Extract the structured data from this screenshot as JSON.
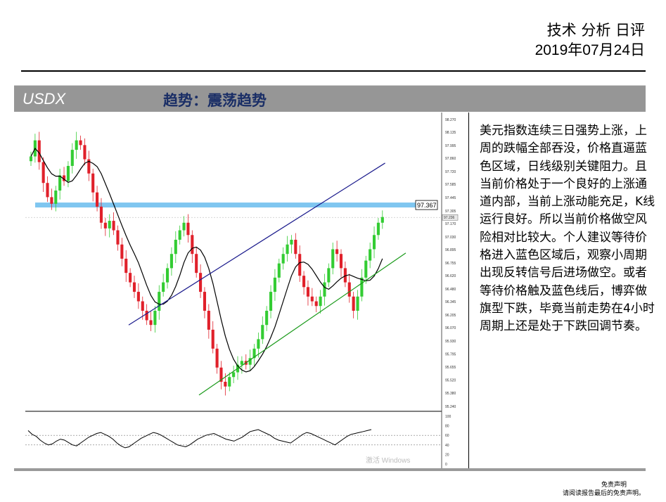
{
  "header": {
    "title": "技术 分析 日评",
    "date": "2019年07月24日"
  },
  "band": {
    "symbol": "USDX",
    "trend": "趋势：震荡趋势"
  },
  "commentary": "美元指数连续三日强势上涨，上周的跌幅全部吞没，价格直逼蓝色区域，日线级别关键阻力。且当前价格处于一个良好的上涨通道内部，当前上涨动能充足，K线运行良好。所以当前价格做空风险相对比较大。个人建议等待价格进入蓝色区域后，观察小周期出现反转信号后进场做空。或者等待价格触及蓝色线后，博弈做旗型下跌，毕竟当前走势在4小时周期上还是处于下跌回调节奏。",
  "watermark": "激活 Windows",
  "disclaimer": {
    "line1": "免责声明",
    "line2": "请阅读报告最后的免责声明。"
  },
  "colors": {
    "band_bg": "#969696",
    "trend_text": "#1a2e66",
    "up_candle": "#33cc33",
    "down_candle": "#e0202a",
    "resistance_zone": "#7fc6f0",
    "upper_channel": "#1a1a8c",
    "lower_channel": "#1a9a1a"
  },
  "chart_data": {
    "type": "candlestick",
    "instrument": "USDX",
    "y_ticks": [
      "98.270",
      "98.135",
      "97.995",
      "97.860",
      "97.720",
      "97.585",
      "97.445",
      "97.305",
      "97.170",
      "97.030",
      "96.895",
      "96.755",
      "96.620",
      "96.480",
      "96.345",
      "96.205",
      "96.070",
      "95.930",
      "95.795",
      "95.655",
      "95.520",
      "95.380",
      "95.240"
    ],
    "ylim": [
      95.24,
      98.27
    ],
    "resistance_label": "97.367",
    "resistance_level": 97.367,
    "current_label": "97.236",
    "current_price": 97.236,
    "upper_channel": {
      "from": [
        0.25,
        96.1
      ],
      "to": [
        0.87,
        97.81
      ]
    },
    "lower_channel": {
      "from": [
        0.42,
        95.36
      ],
      "to": [
        0.92,
        96.86
      ]
    },
    "close": [
      97.88,
      98.05,
      97.82,
      97.6,
      97.45,
      97.38,
      97.52,
      97.68,
      97.62,
      97.78,
      97.95,
      98.05,
      98.0,
      97.85,
      97.7,
      97.5,
      97.35,
      97.18,
      97.12,
      97.2,
      97.1,
      96.95,
      96.8,
      96.65,
      96.55,
      96.45,
      96.35,
      96.25,
      96.15,
      96.1,
      96.25,
      96.45,
      96.55,
      96.7,
      96.85,
      97.0,
      97.1,
      97.18,
      97.05,
      96.85,
      96.65,
      96.45,
      96.25,
      96.05,
      95.85,
      95.65,
      95.5,
      95.45,
      95.55,
      95.6,
      95.68,
      95.72,
      95.68,
      95.75,
      95.85,
      95.95,
      96.1,
      96.25,
      96.45,
      96.6,
      96.75,
      96.85,
      96.95,
      97.0,
      96.85,
      96.62,
      96.5,
      96.4,
      96.35,
      96.3,
      96.4,
      96.55,
      96.7,
      96.9,
      96.85,
      96.7,
      96.55,
      96.4,
      96.25,
      96.4,
      96.6,
      96.78,
      96.9,
      97.05,
      97.18,
      97.24
    ],
    "rsi_levels": [
      80,
      60,
      40,
      20
    ],
    "rsi_ticks": [
      "100",
      "80",
      "60",
      "40",
      "20",
      "0"
    ],
    "rsi": [
      70,
      62,
      58,
      50,
      44,
      40,
      42,
      48,
      52,
      50,
      45,
      40,
      38,
      44,
      50,
      56,
      60,
      64,
      66,
      62,
      58,
      52,
      44,
      38,
      34,
      36,
      42,
      48,
      54,
      58,
      62,
      66,
      64,
      60,
      55,
      50,
      45,
      40,
      38,
      36,
      40,
      46,
      52,
      56,
      60,
      62,
      64,
      60,
      56,
      52,
      50,
      48,
      52,
      56,
      62,
      68,
      70,
      72,
      68,
      64,
      60,
      54,
      50,
      48,
      46,
      44,
      50,
      56,
      62,
      66,
      64,
      60,
      56,
      52,
      48,
      44,
      40,
      46,
      52,
      58,
      62,
      64,
      66,
      68,
      70,
      72
    ]
  }
}
